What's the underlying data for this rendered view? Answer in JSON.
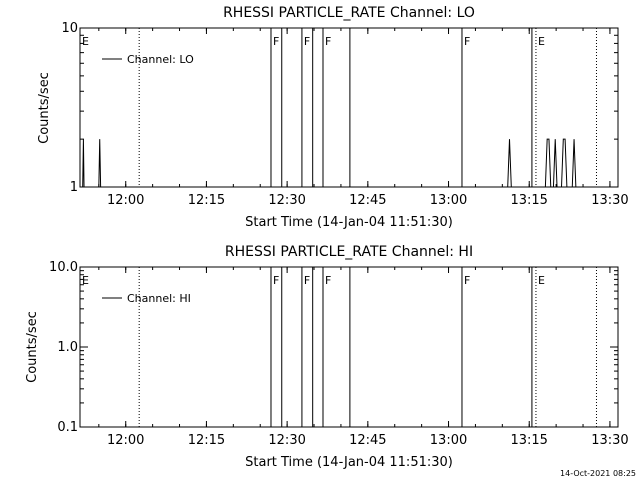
{
  "footer": "14-Oct-2021 08:25",
  "chart_data": [
    {
      "type": "line",
      "title": "RHESSI PARTICLE_RATE Channel: LO",
      "xlabel": "Start Time (14-Jan-04 11:51:30)",
      "ylabel": "Counts/sec",
      "yscale": "log",
      "ylim": [
        1,
        10
      ],
      "xlim": [
        "11:51:30",
        "13:31:30"
      ],
      "ytick_labels": [
        "1",
        "10"
      ],
      "ytick_values": [
        1,
        10
      ],
      "xtick_labels": [
        "12:00",
        "12:15",
        "12:30",
        "12:45",
        "13:00",
        "13:15",
        "13:30"
      ],
      "xtick_values": [
        "12:00",
        "12:15",
        "12:30",
        "12:45",
        "13:00",
        "13:15",
        "13:30"
      ],
      "legend": "top-left",
      "series": [
        {
          "name": "Channel: LO",
          "points": [
            [
              "11:52:00",
              1
            ],
            [
              "11:52:08",
              2
            ],
            [
              "11:52:15",
              1
            ],
            [
              "11:55:00",
              1
            ],
            [
              "11:55:10",
              2
            ],
            [
              "11:55:20",
              1
            ],
            [
              "13:11:00",
              1
            ],
            [
              "13:11:20",
              2
            ],
            [
              "13:11:40",
              1
            ],
            [
              "13:18:00",
              1
            ],
            [
              "13:18:20",
              2
            ],
            [
              "13:18:40",
              2
            ],
            [
              "13:19:00",
              1
            ],
            [
              "13:19:30",
              1
            ],
            [
              "13:19:50",
              2
            ],
            [
              "13:20:10",
              1
            ],
            [
              "13:21:00",
              1
            ],
            [
              "13:21:20",
              2
            ],
            [
              "13:21:40",
              2
            ],
            [
              "13:22:00",
              1
            ],
            [
              "13:23:00",
              1
            ],
            [
              "13:23:20",
              2
            ],
            [
              "13:23:40",
              1
            ]
          ]
        }
      ],
      "solid_markers": [
        "12:27:00",
        "12:29:00",
        "12:32:45",
        "12:34:45",
        "12:36:40",
        "12:41:40",
        "13:02:30",
        "13:15:30"
      ],
      "dotted_markers": [
        "12:02:30",
        "13:16:15",
        "13:27:30"
      ],
      "flags": [
        {
          "label": "E",
          "time": "11:51:30"
        },
        {
          "label": "F",
          "time": "12:27:00"
        },
        {
          "label": "F",
          "time": "12:32:45"
        },
        {
          "label": "F",
          "time": "12:36:40"
        },
        {
          "label": "F",
          "time": "13:02:30"
        },
        {
          "label": "E",
          "time": "13:16:15"
        }
      ]
    },
    {
      "type": "line",
      "title": "RHESSI PARTICLE_RATE Channel: HI",
      "xlabel": "Start Time (14-Jan-04 11:51:30)",
      "ylabel": "Counts/sec",
      "yscale": "log",
      "ylim": [
        0.1,
        10
      ],
      "xlim": [
        "11:51:30",
        "13:31:30"
      ],
      "ytick_labels": [
        "0.1",
        "1.0",
        "10.0"
      ],
      "ytick_values": [
        0.1,
        1,
        10
      ],
      "xtick_labels": [
        "12:00",
        "12:15",
        "12:30",
        "12:45",
        "13:00",
        "13:15",
        "13:30"
      ],
      "xtick_values": [
        "12:00",
        "12:15",
        "12:30",
        "12:45",
        "13:00",
        "13:15",
        "13:30"
      ],
      "legend": "top-left",
      "series": [
        {
          "name": "Channel: HI",
          "points": []
        }
      ],
      "solid_markers": [
        "12:27:00",
        "12:29:00",
        "12:32:45",
        "12:34:45",
        "12:36:40",
        "12:41:40",
        "13:02:30",
        "13:15:30"
      ],
      "dotted_markers": [
        "12:02:30",
        "13:16:15",
        "13:27:30"
      ],
      "flags": [
        {
          "label": "E",
          "time": "11:51:30"
        },
        {
          "label": "F",
          "time": "12:27:00"
        },
        {
          "label": "F",
          "time": "12:32:45"
        },
        {
          "label": "F",
          "time": "12:36:40"
        },
        {
          "label": "F",
          "time": "13:02:30"
        },
        {
          "label": "E",
          "time": "13:16:15"
        }
      ]
    }
  ]
}
